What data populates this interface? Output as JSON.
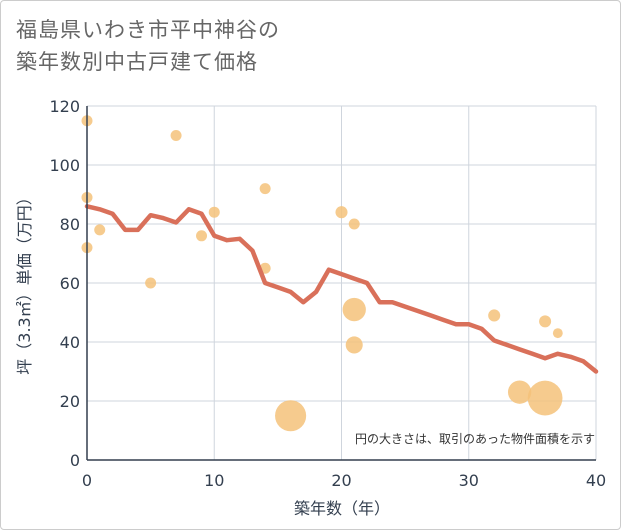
{
  "title": {
    "line1": "福島県いわき市平中神谷の",
    "line2": "築年数別中古戸建て価格"
  },
  "note": "円の大きさは、取引のあった物件面積を示す",
  "colors": {
    "line": "#d9705a",
    "bubble": "#f5c27a",
    "grid": "#cfd5dd",
    "axis": "#333f4f"
  },
  "chart_data": {
    "type": "scatter",
    "xlabel": "築年数（年）",
    "ylabel": "坪（3.3㎡）単価（万円）",
    "xlim": [
      0,
      40
    ],
    "ylim": [
      0,
      120
    ],
    "xticks": [
      0,
      10,
      20,
      30,
      40
    ],
    "yticks": [
      0,
      20,
      40,
      60,
      80,
      100,
      120
    ],
    "grid": true,
    "line_series": {
      "x": [
        0,
        1,
        2,
        3,
        4,
        5,
        6,
        7,
        8,
        9,
        10,
        11,
        12,
        13,
        14,
        15,
        16,
        17,
        18,
        19,
        20,
        21,
        22,
        23,
        24,
        25,
        26,
        27,
        28,
        29,
        30,
        31,
        32,
        33,
        34,
        35,
        36,
        37,
        38,
        39,
        40
      ],
      "y": [
        86,
        85,
        83.5,
        78,
        78,
        83,
        82,
        80.5,
        85,
        83.5,
        76,
        74.5,
        75,
        71,
        60,
        58.5,
        57,
        53.5,
        57,
        64.5,
        63,
        61.5,
        60,
        53.5,
        53.5,
        52,
        50.5,
        49,
        47.5,
        46,
        46,
        44.5,
        40.5,
        39,
        37.5,
        36,
        34.5,
        36,
        35,
        33.5,
        30
      ]
    },
    "points": [
      {
        "x": 0,
        "y": 115,
        "size": 1
      },
      {
        "x": 0,
        "y": 89,
        "size": 1
      },
      {
        "x": 0,
        "y": 72,
        "size": 1
      },
      {
        "x": 1,
        "y": 78,
        "size": 1
      },
      {
        "x": 5,
        "y": 60,
        "size": 1
      },
      {
        "x": 7,
        "y": 110,
        "size": 1
      },
      {
        "x": 9,
        "y": 76,
        "size": 1
      },
      {
        "x": 10,
        "y": 84,
        "size": 1
      },
      {
        "x": 14,
        "y": 92,
        "size": 1
      },
      {
        "x": 14,
        "y": 65,
        "size": 1
      },
      {
        "x": 16,
        "y": 15,
        "size": 8
      },
      {
        "x": 20,
        "y": 84,
        "size": 1.2
      },
      {
        "x": 21,
        "y": 80,
        "size": 1
      },
      {
        "x": 21,
        "y": 51,
        "size": 4.5
      },
      {
        "x": 21,
        "y": 39,
        "size": 2.4
      },
      {
        "x": 32,
        "y": 49,
        "size": 1.2
      },
      {
        "x": 34,
        "y": 23,
        "size": 4.5
      },
      {
        "x": 36,
        "y": 21,
        "size": 10
      },
      {
        "x": 36,
        "y": 47,
        "size": 1.2
      },
      {
        "x": 37,
        "y": 43,
        "size": 0.8
      }
    ]
  }
}
